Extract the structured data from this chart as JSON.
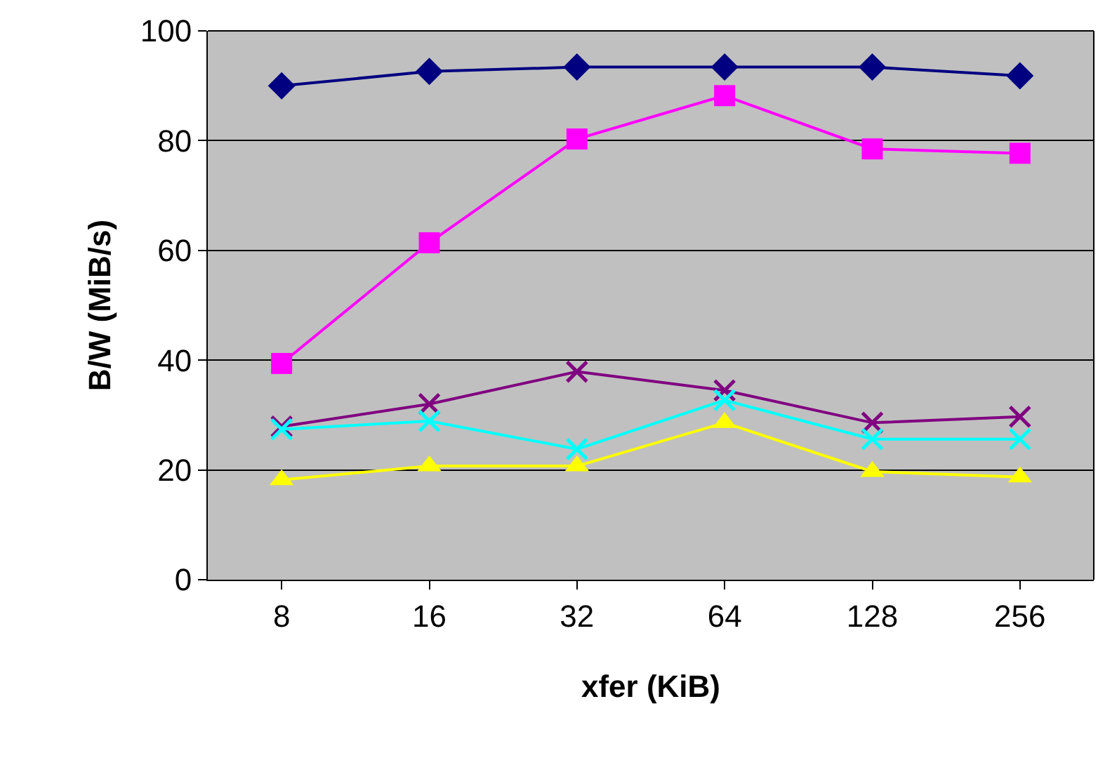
{
  "chart_data": {
    "type": "line",
    "xlabel": "xfer (KiB)",
    "ylabel": "B/W (MiB/s)",
    "categories": [
      "8",
      "16",
      "32",
      "64",
      "128",
      "256"
    ],
    "ylim": [
      0,
      100
    ],
    "yticks": [
      0,
      20,
      40,
      60,
      80,
      100
    ],
    "grid": "y",
    "line_style": "solid",
    "series": [
      {
        "color": "#000080",
        "marker": "diamond",
        "values": [
          90.0,
          92.6,
          93.4,
          93.4,
          93.4,
          91.8
        ]
      },
      {
        "color": "#ff00ff",
        "marker": "square",
        "values": [
          39.4,
          61.4,
          80.3,
          88.2,
          78.5,
          77.7
        ]
      },
      {
        "color": "#800080",
        "marker": "cross",
        "values": [
          27.9,
          32.0,
          37.9,
          34.5,
          28.6,
          29.7
        ]
      },
      {
        "color": "#00ffff",
        "marker": "cross",
        "values": [
          27.4,
          28.9,
          23.8,
          32.7,
          25.6,
          25.6
        ]
      },
      {
        "color": "#ffff00",
        "marker": "triangle",
        "values": [
          18.2,
          20.7,
          20.7,
          28.6,
          19.7,
          18.7
        ]
      }
    ]
  }
}
